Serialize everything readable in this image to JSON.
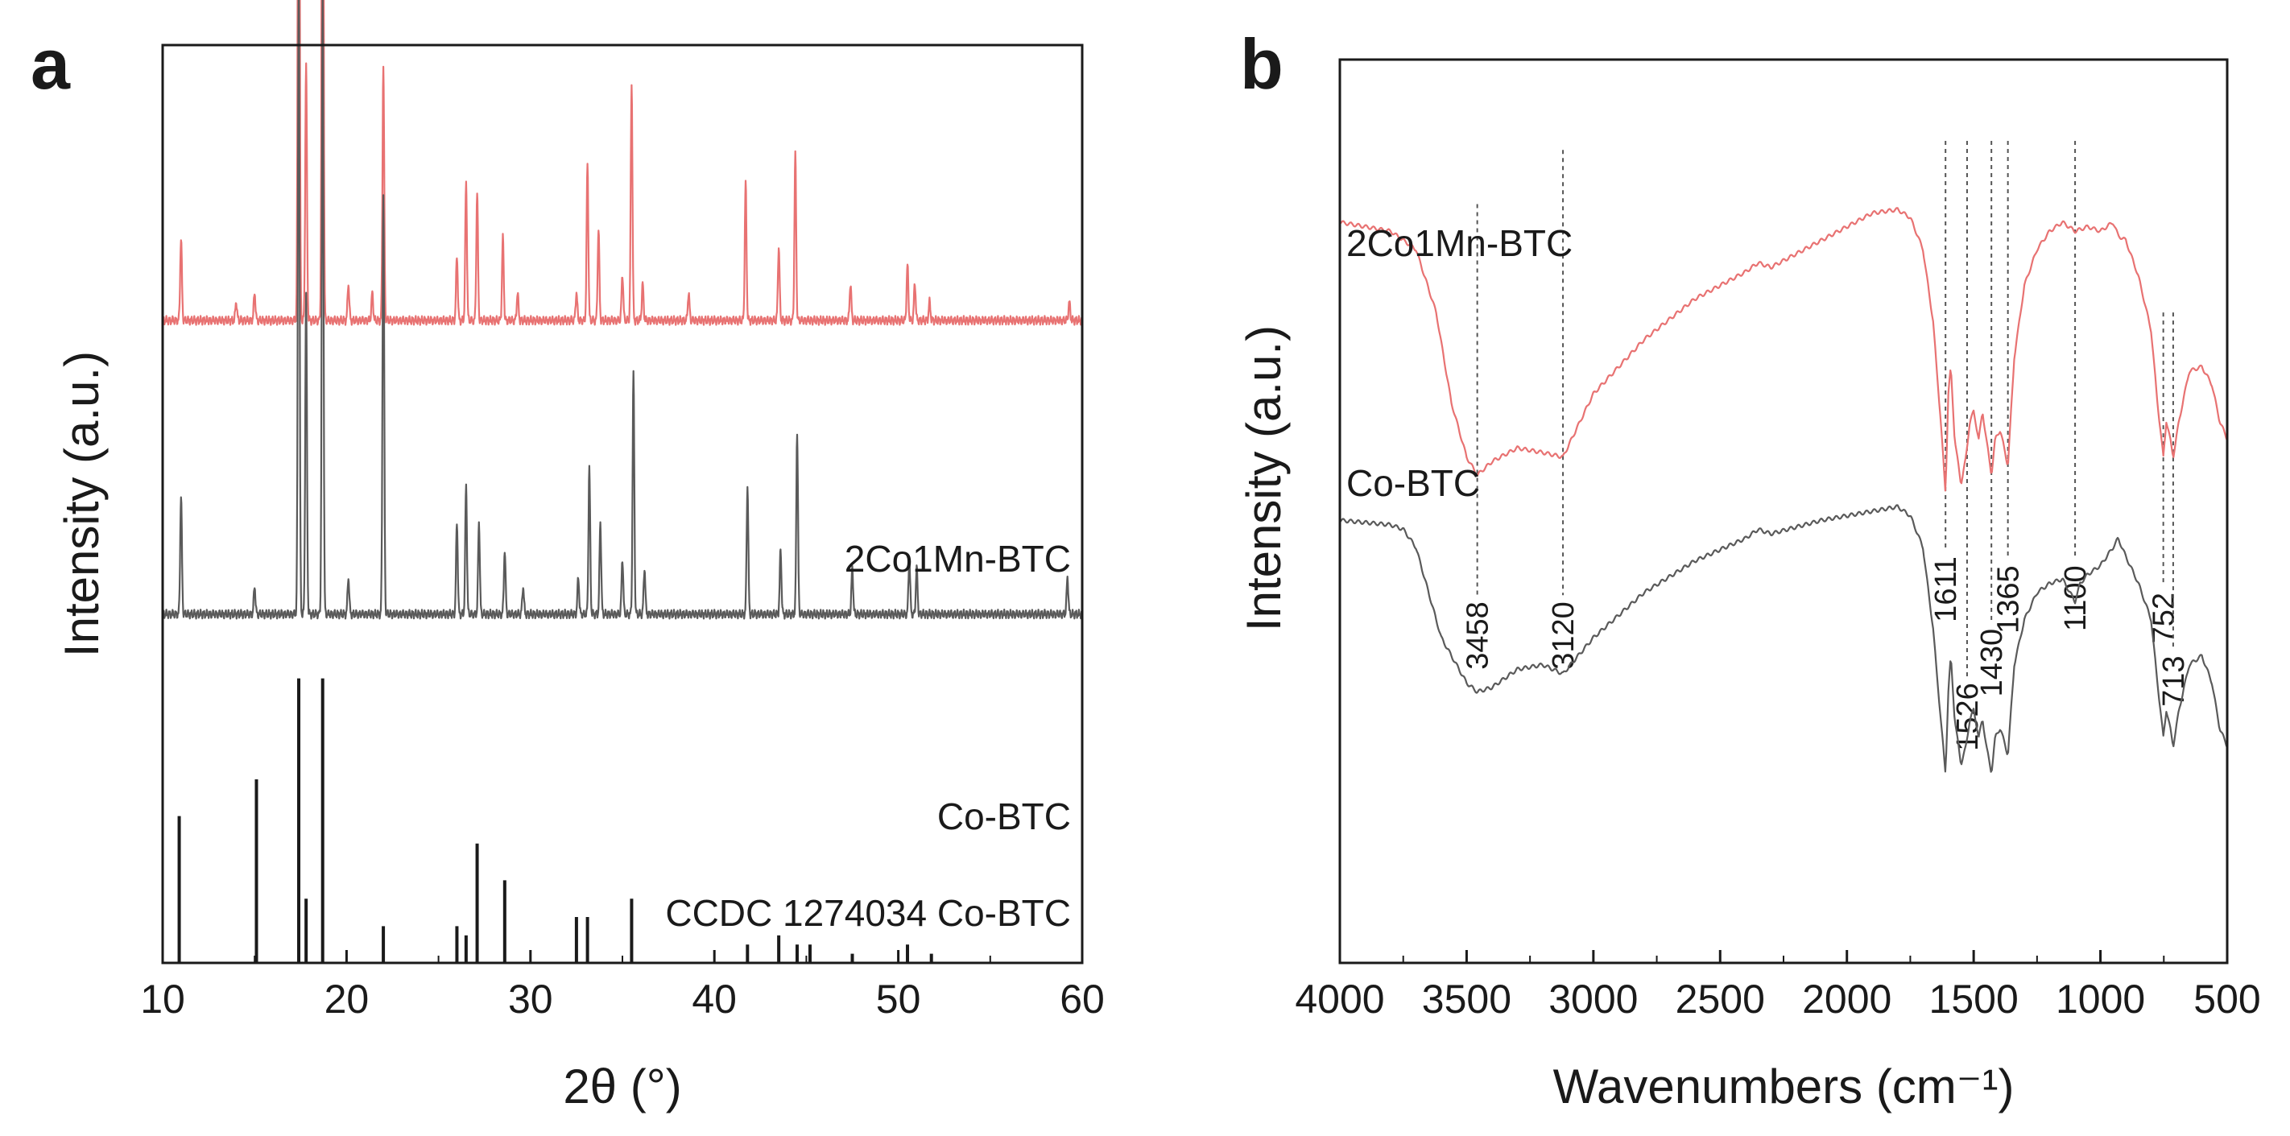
{
  "figure": {
    "panel_a_letter": "a",
    "panel_b_letter": "b"
  },
  "chart_data": [
    {
      "type": "line",
      "panel": "a",
      "title": "",
      "xlabel": "2θ (°)",
      "ylabel": "Intensity (a.u.)",
      "xlim": [
        10,
        60
      ],
      "x_ticks": [
        10,
        20,
        30,
        40,
        50,
        60
      ],
      "y_ticks_shown": false,
      "grid": false,
      "series": [
        {
          "name": "2Co1Mn-BTC",
          "color": "#e87272",
          "baseline_level": 0.7,
          "peaks": [
            {
              "x": 11.0,
              "h": 0.09
            },
            {
              "x": 14.0,
              "h": 0.02
            },
            {
              "x": 15.0,
              "h": 0.03
            },
            {
              "x": 17.4,
              "h": 0.86
            },
            {
              "x": 17.8,
              "h": 0.28
            },
            {
              "x": 18.7,
              "h": 0.84
            },
            {
              "x": 20.1,
              "h": 0.04
            },
            {
              "x": 21.4,
              "h": 0.03
            },
            {
              "x": 22.0,
              "h": 0.28
            },
            {
              "x": 26.0,
              "h": 0.07
            },
            {
              "x": 26.5,
              "h": 0.15
            },
            {
              "x": 27.1,
              "h": 0.14
            },
            {
              "x": 28.5,
              "h": 0.09
            },
            {
              "x": 29.3,
              "h": 0.03
            },
            {
              "x": 32.5,
              "h": 0.03
            },
            {
              "x": 33.1,
              "h": 0.17
            },
            {
              "x": 33.7,
              "h": 0.1
            },
            {
              "x": 35.0,
              "h": 0.05
            },
            {
              "x": 35.5,
              "h": 0.26
            },
            {
              "x": 36.1,
              "h": 0.04
            },
            {
              "x": 38.6,
              "h": 0.03
            },
            {
              "x": 41.7,
              "h": 0.15
            },
            {
              "x": 43.5,
              "h": 0.08
            },
            {
              "x": 44.4,
              "h": 0.18
            },
            {
              "x": 47.4,
              "h": 0.04
            },
            {
              "x": 50.5,
              "h": 0.06
            },
            {
              "x": 50.9,
              "h": 0.04
            },
            {
              "x": 51.7,
              "h": 0.02
            },
            {
              "x": 59.3,
              "h": 0.02
            }
          ]
        },
        {
          "name": "Co-BTC",
          "color": "#5a5a5a",
          "baseline_level": 0.38,
          "peaks": [
            {
              "x": 11.0,
              "h": 0.13
            },
            {
              "x": 15.0,
              "h": 0.03
            },
            {
              "x": 17.4,
              "h": 0.7
            },
            {
              "x": 17.8,
              "h": 0.35
            },
            {
              "x": 18.7,
              "h": 0.68
            },
            {
              "x": 20.1,
              "h": 0.04
            },
            {
              "x": 22.0,
              "h": 0.46
            },
            {
              "x": 26.0,
              "h": 0.1
            },
            {
              "x": 26.5,
              "h": 0.14
            },
            {
              "x": 27.2,
              "h": 0.1
            },
            {
              "x": 28.6,
              "h": 0.07
            },
            {
              "x": 29.6,
              "h": 0.03
            },
            {
              "x": 32.6,
              "h": 0.04
            },
            {
              "x": 33.2,
              "h": 0.16
            },
            {
              "x": 33.8,
              "h": 0.1
            },
            {
              "x": 35.0,
              "h": 0.06
            },
            {
              "x": 35.6,
              "h": 0.26
            },
            {
              "x": 36.2,
              "h": 0.05
            },
            {
              "x": 41.8,
              "h": 0.14
            },
            {
              "x": 43.6,
              "h": 0.07
            },
            {
              "x": 44.5,
              "h": 0.2
            },
            {
              "x": 47.5,
              "h": 0.05
            },
            {
              "x": 50.6,
              "h": 0.06
            },
            {
              "x": 51.0,
              "h": 0.05
            },
            {
              "x": 59.2,
              "h": 0.04
            }
          ]
        },
        {
          "name": "CCDC 1274034 Co-BTC",
          "color": "#1a1a1a",
          "style": "stick",
          "sticks": [
            {
              "x": 10.9,
              "h": 0.16
            },
            {
              "x": 15.1,
              "h": 0.2
            },
            {
              "x": 17.4,
              "h": 0.31
            },
            {
              "x": 17.8,
              "h": 0.07
            },
            {
              "x": 18.7,
              "h": 0.31
            },
            {
              "x": 22.0,
              "h": 0.04
            },
            {
              "x": 26.0,
              "h": 0.04
            },
            {
              "x": 26.5,
              "h": 0.03
            },
            {
              "x": 27.1,
              "h": 0.13
            },
            {
              "x": 28.6,
              "h": 0.09
            },
            {
              "x": 32.5,
              "h": 0.05
            },
            {
              "x": 33.1,
              "h": 0.05
            },
            {
              "x": 35.5,
              "h": 0.07
            },
            {
              "x": 41.8,
              "h": 0.02
            },
            {
              "x": 43.5,
              "h": 0.03
            },
            {
              "x": 44.5,
              "h": 0.02
            },
            {
              "x": 45.2,
              "h": 0.02
            },
            {
              "x": 47.5,
              "h": 0.01
            },
            {
              "x": 50.5,
              "h": 0.02
            },
            {
              "x": 51.8,
              "h": 0.01
            }
          ]
        }
      ]
    },
    {
      "type": "line",
      "panel": "b",
      "title": "",
      "xlabel": "Wavenumbers (cm⁻¹)",
      "ylabel": "Intensity (a.u.)",
      "xlim": [
        4000,
        500
      ],
      "x_ticks": [
        4000,
        3500,
        3000,
        2500,
        2000,
        1500,
        1000,
        500
      ],
      "y_ticks_shown": false,
      "grid": false,
      "series": [
        {
          "name": "2Co1Mn-BTC",
          "color": "#e87272",
          "points": [
            [
              4000,
              0.82
            ],
            [
              3800,
              0.81
            ],
            [
              3700,
              0.79
            ],
            [
              3620,
              0.72
            ],
            [
              3560,
              0.62
            ],
            [
              3500,
              0.56
            ],
            [
              3458,
              0.54
            ],
            [
              3400,
              0.555
            ],
            [
              3300,
              0.57
            ],
            [
              3200,
              0.565
            ],
            [
              3120,
              0.56
            ],
            [
              3000,
              0.63
            ],
            [
              2800,
              0.69
            ],
            [
              2600,
              0.735
            ],
            [
              2400,
              0.765
            ],
            [
              2350,
              0.775
            ],
            [
              2300,
              0.77
            ],
            [
              2100,
              0.8
            ],
            [
              1900,
              0.83
            ],
            [
              1800,
              0.834
            ],
            [
              1750,
              0.825
            ],
            [
              1700,
              0.79
            ],
            [
              1660,
              0.71
            ],
            [
              1630,
              0.6
            ],
            [
              1611,
              0.52
            ],
            [
              1600,
              0.63
            ],
            [
              1590,
              0.66
            ],
            [
              1575,
              0.58
            ],
            [
              1550,
              0.53
            ],
            [
              1530,
              0.56
            ],
            [
              1515,
              0.6
            ],
            [
              1500,
              0.61
            ],
            [
              1480,
              0.58
            ],
            [
              1465,
              0.61
            ],
            [
              1450,
              0.58
            ],
            [
              1430,
              0.54
            ],
            [
              1415,
              0.58
            ],
            [
              1395,
              0.59
            ],
            [
              1365,
              0.55
            ],
            [
              1340,
              0.67
            ],
            [
              1300,
              0.75
            ],
            [
              1250,
              0.79
            ],
            [
              1200,
              0.81
            ],
            [
              1150,
              0.82
            ],
            [
              1100,
              0.81
            ],
            [
              1050,
              0.815
            ],
            [
              1000,
              0.81
            ],
            [
              950,
              0.82
            ],
            [
              930,
              0.805
            ],
            [
              900,
              0.8
            ],
            [
              850,
              0.76
            ],
            [
              800,
              0.7
            ],
            [
              775,
              0.62
            ],
            [
              752,
              0.56
            ],
            [
              740,
              0.6
            ],
            [
              725,
              0.58
            ],
            [
              713,
              0.56
            ],
            [
              690,
              0.6
            ],
            [
              650,
              0.655
            ],
            [
              600,
              0.66
            ],
            [
              560,
              0.64
            ],
            [
              530,
              0.6
            ],
            [
              500,
              0.58
            ]
          ]
        },
        {
          "name": "Co-BTC",
          "color": "#5a5a5a",
          "points": [
            [
              4000,
              0.49
            ],
            [
              3800,
              0.485
            ],
            [
              3750,
              0.48
            ],
            [
              3700,
              0.46
            ],
            [
              3600,
              0.36
            ],
            [
              3500,
              0.31
            ],
            [
              3458,
              0.3
            ],
            [
              3400,
              0.305
            ],
            [
              3300,
              0.325
            ],
            [
              3200,
              0.33
            ],
            [
              3120,
              0.32
            ],
            [
              3000,
              0.36
            ],
            [
              2800,
              0.41
            ],
            [
              2600,
              0.445
            ],
            [
              2400,
              0.47
            ],
            [
              2350,
              0.48
            ],
            [
              2300,
              0.475
            ],
            [
              2100,
              0.49
            ],
            [
              1900,
              0.5
            ],
            [
              1800,
              0.505
            ],
            [
              1750,
              0.495
            ],
            [
              1700,
              0.46
            ],
            [
              1660,
              0.37
            ],
            [
              1630,
              0.27
            ],
            [
              1611,
              0.21
            ],
            [
              1600,
              0.3
            ],
            [
              1590,
              0.34
            ],
            [
              1575,
              0.27
            ],
            [
              1550,
              0.22
            ],
            [
              1530,
              0.24
            ],
            [
              1515,
              0.27
            ],
            [
              1500,
              0.28
            ],
            [
              1480,
              0.25
            ],
            [
              1465,
              0.27
            ],
            [
              1450,
              0.24
            ],
            [
              1430,
              0.21
            ],
            [
              1415,
              0.25
            ],
            [
              1395,
              0.26
            ],
            [
              1365,
              0.23
            ],
            [
              1340,
              0.33
            ],
            [
              1300,
              0.38
            ],
            [
              1250,
              0.41
            ],
            [
              1200,
              0.42
            ],
            [
              1150,
              0.425
            ],
            [
              1100,
              0.4
            ],
            [
              1080,
              0.42
            ],
            [
              1050,
              0.43
            ],
            [
              1000,
              0.44
            ],
            [
              950,
              0.46
            ],
            [
              930,
              0.47
            ],
            [
              900,
              0.45
            ],
            [
              850,
              0.42
            ],
            [
              800,
              0.38
            ],
            [
              775,
              0.31
            ],
            [
              752,
              0.25
            ],
            [
              740,
              0.28
            ],
            [
              725,
              0.26
            ],
            [
              713,
              0.24
            ],
            [
              690,
              0.28
            ],
            [
              650,
              0.33
            ],
            [
              600,
              0.34
            ],
            [
              560,
              0.31
            ],
            [
              530,
              0.26
            ],
            [
              500,
              0.24
            ]
          ]
        }
      ],
      "annotations": [
        {
          "x": 3458,
          "label": "3458"
        },
        {
          "x": 3120,
          "label": "3120"
        },
        {
          "x": 1611,
          "label": "1611"
        },
        {
          "x": 1526,
          "label": "1526"
        },
        {
          "x": 1430,
          "label": "1430"
        },
        {
          "x": 1365,
          "label": "1365"
        },
        {
          "x": 1100,
          "label": "1100"
        },
        {
          "x": 752,
          "label": "752"
        },
        {
          "x": 713,
          "label": "713"
        }
      ]
    }
  ]
}
